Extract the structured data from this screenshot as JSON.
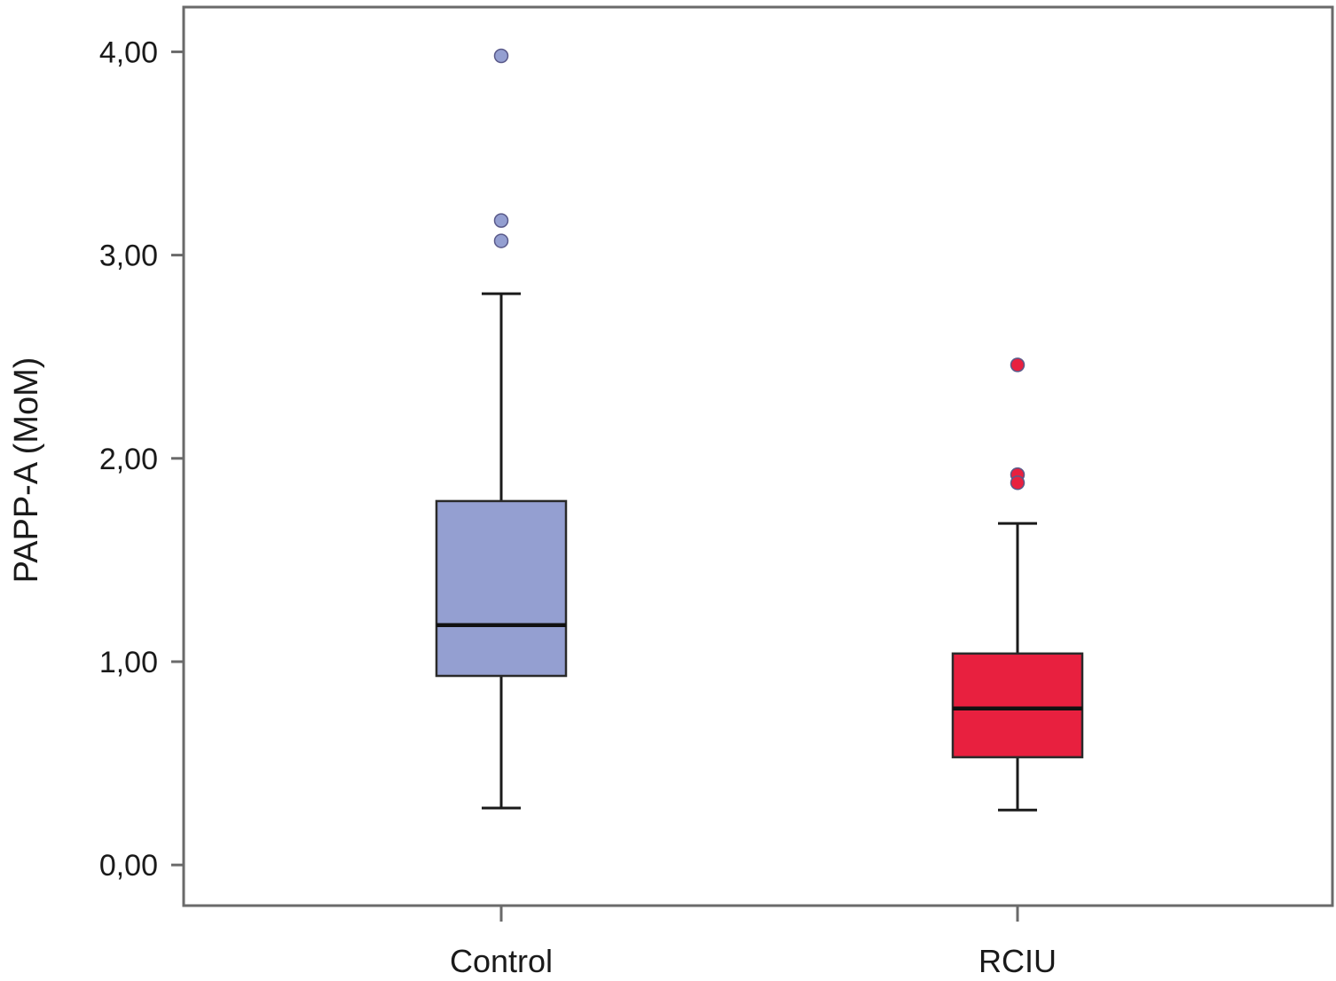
{
  "chart_data": {
    "type": "box",
    "ylabel": "PAPP-A (MoM)",
    "xlabel": "",
    "ylim": [
      -0.2,
      4.22
    ],
    "yticks": [
      0,
      1,
      2,
      3,
      4
    ],
    "ytick_labels": [
      "0,00",
      "1,00",
      "2,00",
      "3,00",
      "4,00"
    ],
    "categories": [
      "Control",
      "RCIU"
    ],
    "grid": false,
    "series": [
      {
        "category": "Control",
        "color": "#949fd1",
        "whisker_low": 0.28,
        "q1": 0.93,
        "median": 1.18,
        "q3": 1.79,
        "whisker_high": 2.81,
        "outliers": [
          3.98,
          3.17,
          3.07
        ]
      },
      {
        "category": "RCIU",
        "color": "#e8203f",
        "whisker_low": 0.27,
        "q1": 0.53,
        "median": 0.77,
        "q3": 1.04,
        "whisker_high": 1.68,
        "outliers": [
          2.46,
          1.92,
          1.88
        ]
      }
    ]
  }
}
